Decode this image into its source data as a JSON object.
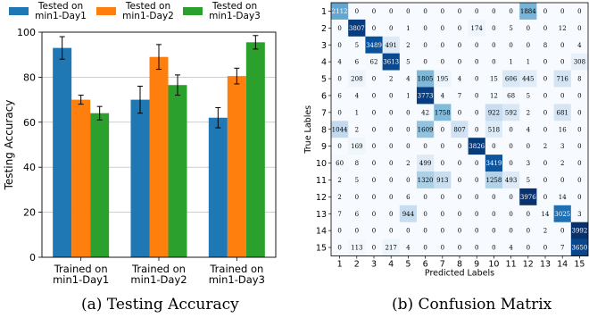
{
  "chart_data": [
    {
      "type": "bar",
      "caption": "(a) Testing Accuracy",
      "categories": [
        "Trained on\nmin1-Day1",
        "Trained on\nmin1-Day2",
        "Trained on\nmin1-Day3"
      ],
      "ylabel": "Testing Accuracy",
      "xlabel": "",
      "ylim": [
        0,
        100
      ],
      "yticks": [
        0,
        20,
        40,
        60,
        80,
        100
      ],
      "grid": true,
      "legend_position": "top",
      "series": [
        {
          "name": "Tested on\nmin1-Day1",
          "color": "#1f77b4",
          "values": [
            93,
            70,
            62
          ],
          "errors": [
            5,
            6,
            4.5
          ]
        },
        {
          "name": "Tested on\nmin1-Day2",
          "color": "#ff7f0e",
          "values": [
            70,
            89,
            80.5
          ],
          "errors": [
            2,
            5.5,
            3.5
          ]
        },
        {
          "name": "Tested on\nmin1-Day3",
          "color": "#2ca02c",
          "values": [
            64,
            76.5,
            95.5
          ],
          "errors": [
            3,
            4.5,
            3
          ]
        }
      ]
    },
    {
      "type": "heatmap",
      "caption": "(b) Confusion Matrix",
      "xlabel": "Predicted Labels",
      "ylabel": "True Lables",
      "labels": [
        "1",
        "2",
        "3",
        "4",
        "5",
        "6",
        "7",
        "8",
        "9",
        "10",
        "11",
        "12",
        "13",
        "14",
        "15"
      ],
      "colormap": "Blues",
      "max_value": 3992,
      "matrix": [
        [
          2112,
          0,
          0,
          0,
          0,
          0,
          0,
          0,
          0,
          0,
          0,
          1884,
          0,
          0,
          0
        ],
        [
          0,
          3807,
          0,
          0,
          1,
          0,
          0,
          0,
          174,
          0,
          5,
          0,
          0,
          12,
          0
        ],
        [
          0,
          5,
          3489,
          491,
          2,
          0,
          0,
          0,
          0,
          0,
          0,
          0,
          8,
          0,
          4
        ],
        [
          4,
          6,
          62,
          3613,
          5,
          0,
          0,
          0,
          0,
          0,
          1,
          1,
          0,
          0,
          308
        ],
        [
          0,
          208,
          0,
          2,
          4,
          1805,
          195,
          4,
          0,
          15,
          606,
          445,
          0,
          716,
          8
        ],
        [
          6,
          4,
          0,
          0,
          1,
          3773,
          4,
          7,
          0,
          12,
          68,
          5,
          0,
          0,
          0
        ],
        [
          0,
          1,
          0,
          0,
          0,
          42,
          1758,
          0,
          0,
          922,
          592,
          2,
          0,
          681,
          0
        ],
        [
          1044,
          2,
          0,
          0,
          0,
          1609,
          0,
          807,
          0,
          518,
          0,
          4,
          0,
          16,
          0
        ],
        [
          0,
          169,
          0,
          0,
          0,
          0,
          0,
          0,
          3826,
          0,
          0,
          0,
          2,
          3,
          0
        ],
        [
          60,
          8,
          0,
          0,
          2,
          499,
          0,
          0,
          0,
          3419,
          0,
          3,
          0,
          2,
          0
        ],
        [
          2,
          5,
          0,
          0,
          0,
          1320,
          913,
          0,
          0,
          1258,
          493,
          5,
          0,
          0,
          0
        ],
        [
          2,
          0,
          0,
          0,
          6,
          0,
          0,
          0,
          0,
          0,
          0,
          3976,
          0,
          14,
          0
        ],
        [
          7,
          6,
          0,
          0,
          944,
          0,
          0,
          0,
          0,
          0,
          0,
          0,
          14,
          3025,
          3
        ],
        [
          0,
          0,
          0,
          0,
          0,
          0,
          0,
          0,
          0,
          0,
          0,
          0,
          2,
          0,
          3992
        ],
        [
          0,
          113,
          0,
          217,
          4,
          0,
          0,
          0,
          0,
          0,
          4,
          0,
          0,
          7,
          3650
        ]
      ]
    }
  ]
}
